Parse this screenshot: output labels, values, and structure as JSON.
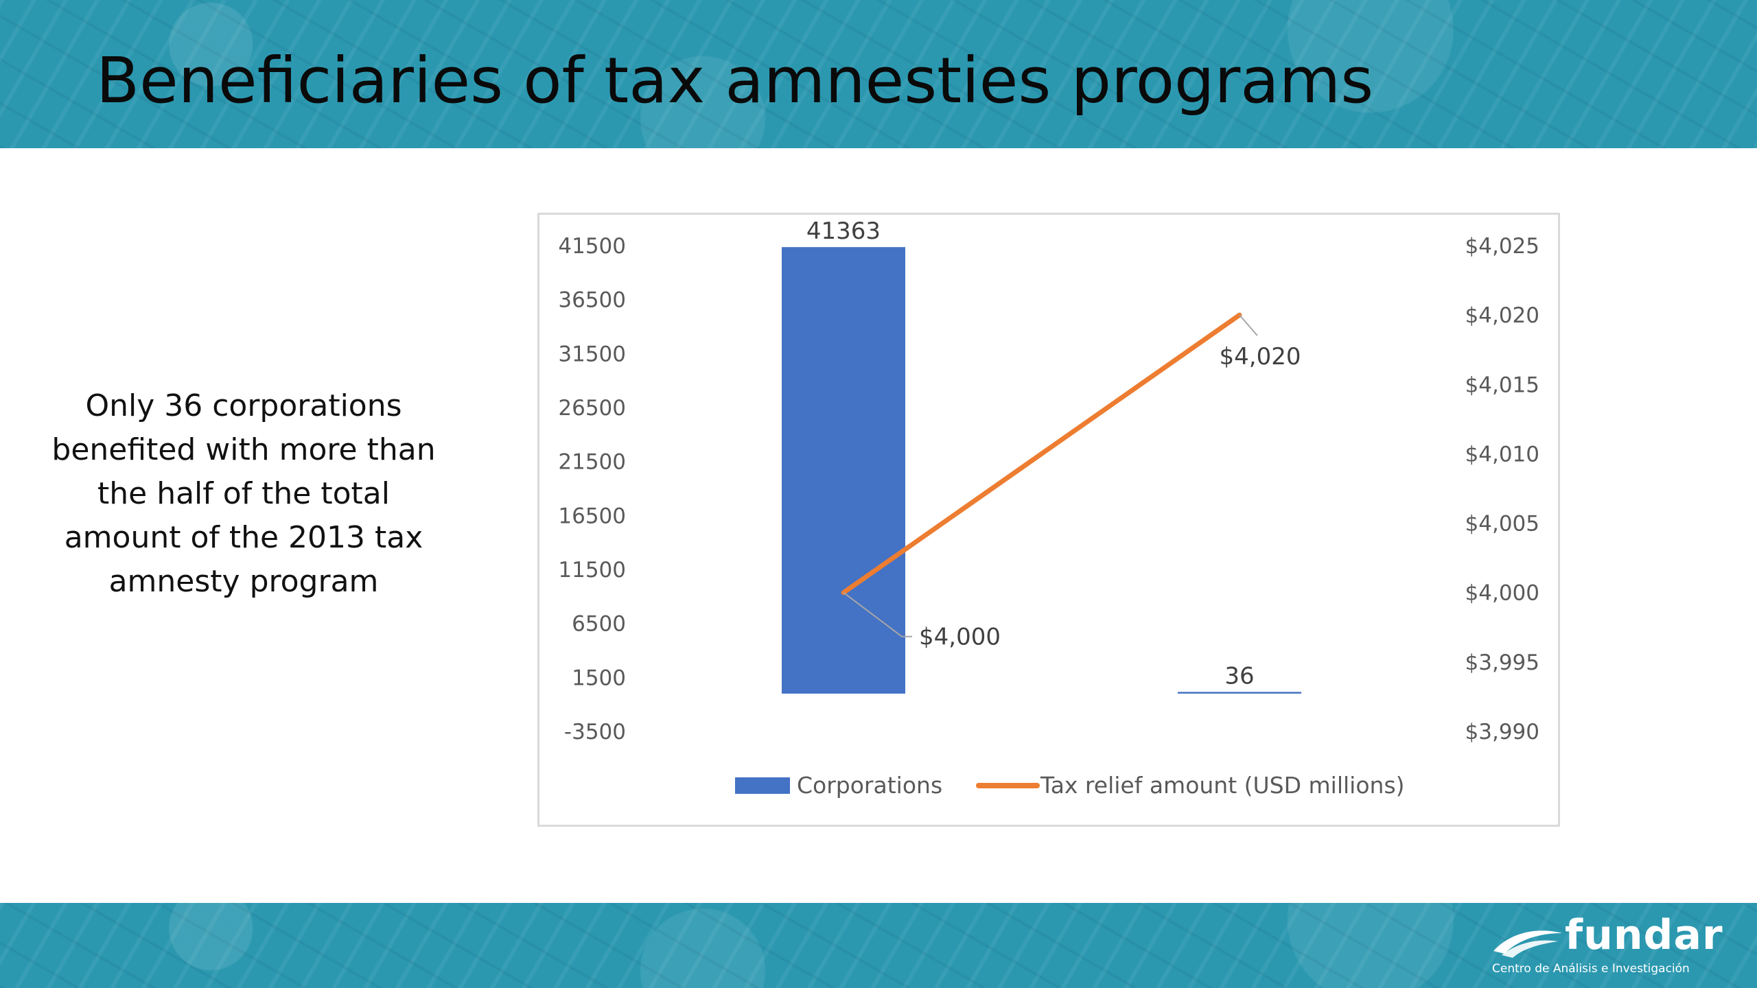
{
  "slide": {
    "title": "Beneficiaries of tax amnesties programs",
    "side_text": "Only 36 corporations benefited with more than the half of the total amount of the 2013 tax amnesty program"
  },
  "logo": {
    "name": "fundar",
    "subtitle": "Centro de Análisis e Investigación"
  },
  "colors": {
    "band": "#2b98b0",
    "bar": "#4472c4",
    "line": "#ed7d31"
  },
  "chart_data": {
    "type": "bar",
    "title": "",
    "categories": [
      "",
      ""
    ],
    "series": [
      {
        "name": "Corporations",
        "type": "bar",
        "axis": "left",
        "values": [
          41363,
          36
        ],
        "data_labels": [
          "41363",
          "36"
        ]
      },
      {
        "name": "Tax relief amount (USD millions)",
        "type": "line",
        "axis": "right",
        "values": [
          4000,
          4020
        ],
        "data_labels": [
          "$4,000",
          "$4,020"
        ]
      }
    ],
    "y_left": {
      "ylim": [
        -3500,
        41500
      ],
      "ticks": [
        41500,
        36500,
        31500,
        26500,
        21500,
        16500,
        11500,
        6500,
        1500,
        -3500
      ]
    },
    "y_right": {
      "ylim": [
        3990,
        4025
      ],
      "ticks": [
        "$4,025",
        "$4,020",
        "$4,015",
        "$4,010",
        "$4,005",
        "$4,000",
        "$3,995",
        "$3,990"
      ],
      "tick_values": [
        4025,
        4020,
        4015,
        4010,
        4005,
        4000,
        3995,
        3990
      ]
    },
    "grid": false,
    "legend": "bottom"
  }
}
